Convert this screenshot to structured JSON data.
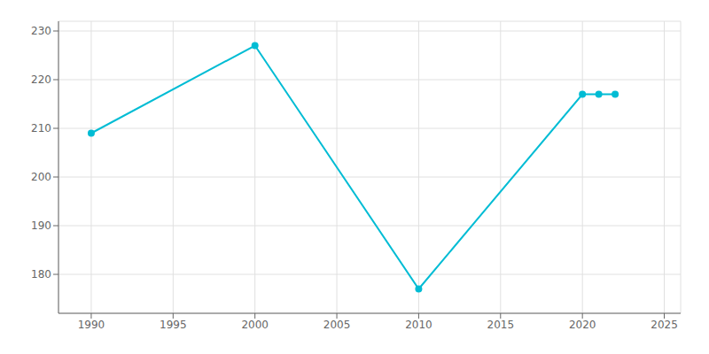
{
  "chart_data": {
    "type": "line",
    "x": [
      1990,
      2000,
      2010,
      2020,
      2021,
      2022
    ],
    "values": [
      209,
      227,
      177,
      217,
      217,
      217
    ],
    "color": "#00bcd4",
    "marker": "circle",
    "xlim": [
      1988,
      2026
    ],
    "ylim": [
      172,
      232
    ],
    "xticks": [
      1990,
      1995,
      2000,
      2005,
      2010,
      2015,
      2020,
      2025
    ],
    "yticks": [
      180,
      190,
      200,
      210,
      220,
      230
    ],
    "grid": true
  }
}
